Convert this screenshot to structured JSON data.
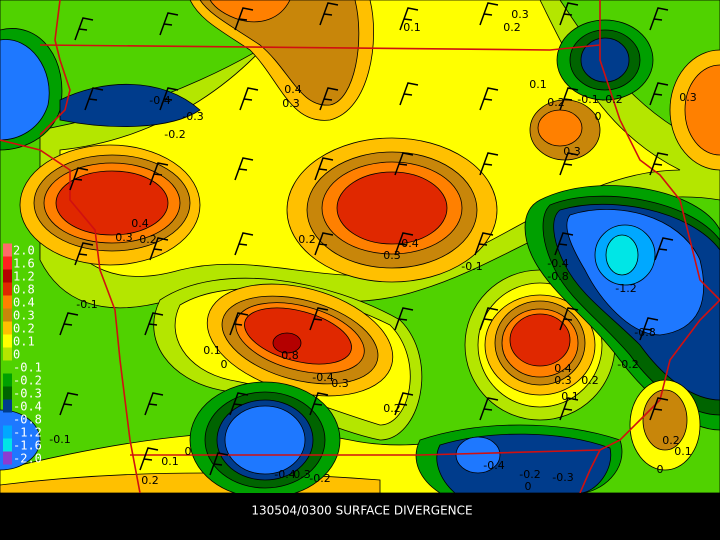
{
  "title": "130504/0300 SURFACE DIVERGENCE",
  "legend": [
    {
      "label": "2.0",
      "color": "#ff6a6a"
    },
    {
      "label": "1.6",
      "color": "#ff2020"
    },
    {
      "label": "1.2",
      "color": "#b40000"
    },
    {
      "label": "0.8",
      "color": "#e02800"
    },
    {
      "label": "0.4",
      "color": "#ff8000"
    },
    {
      "label": "0.3",
      "color": "#c8860a"
    },
    {
      "label": "0.2",
      "color": "#ffc000"
    },
    {
      "label": "0.1",
      "color": "#ffff00"
    },
    {
      "label": "0",
      "color": "#b4e600"
    },
    {
      "label": "-0.1",
      "color": "#50d200"
    },
    {
      "label": "-0.2",
      "color": "#00a000"
    },
    {
      "label": "-0.3",
      "color": "#006400"
    },
    {
      "label": "-0.4",
      "color": "#003c8c"
    },
    {
      "label": "-0.8",
      "color": "#1e78ff"
    },
    {
      "label": "-1.2",
      "color": "#00a8ff"
    },
    {
      "label": "-1.6",
      "color": "#00e6e6"
    },
    {
      "label": "-2.0",
      "color": "#8c3cd2"
    }
  ],
  "contour_labels": [
    "0.1",
    "0.3",
    "0.2",
    "0.4",
    "0.3",
    "-0.4",
    "-0.3",
    "-0.2",
    "0.1",
    "0.2",
    "-0.1",
    "-0.2",
    "0",
    "0.3",
    "0.3",
    "0.4",
    "0.3",
    "0.2",
    "0.2",
    "0.4",
    "0.3",
    "-0.1",
    "-0.4",
    "-0.8",
    "-1.2",
    "-0.1",
    "0.1",
    "0",
    "0.8",
    "-0.4",
    "0.3",
    "-0.8",
    "0.4",
    "0.3",
    "0.2",
    "0.1",
    "-0.2",
    "0.2",
    "-0.1",
    "0",
    "0.1",
    "0.2",
    "0.1",
    "0",
    "-0.4",
    "-0.4",
    "0.3",
    "-0.2",
    "-0.2",
    "-0.3",
    "0",
    "0.2"
  ]
}
